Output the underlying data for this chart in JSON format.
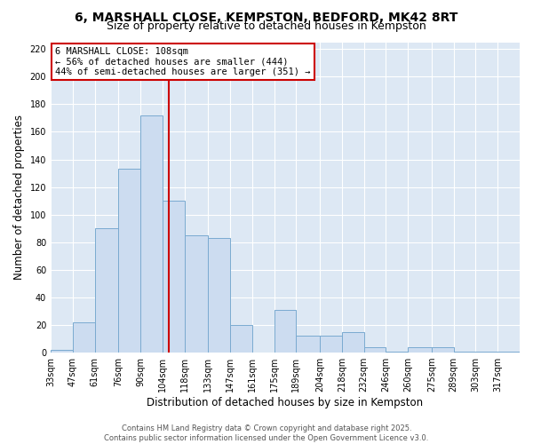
{
  "title": "6, MARSHALL CLOSE, KEMPSTON, BEDFORD, MK42 8RT",
  "subtitle": "Size of property relative to detached houses in Kempston",
  "xlabel": "Distribution of detached houses by size in Kempston",
  "ylabel": "Number of detached properties",
  "bin_labels": [
    "33sqm",
    "47sqm",
    "61sqm",
    "76sqm",
    "90sqm",
    "104sqm",
    "118sqm",
    "133sqm",
    "147sqm",
    "161sqm",
    "175sqm",
    "189sqm",
    "204sqm",
    "218sqm",
    "232sqm",
    "246sqm",
    "260sqm",
    "275sqm",
    "289sqm",
    "303sqm",
    "317sqm"
  ],
  "bin_edges": [
    33,
    47,
    61,
    76,
    90,
    104,
    118,
    133,
    147,
    161,
    175,
    189,
    204,
    218,
    232,
    246,
    260,
    275,
    289,
    303,
    317,
    331
  ],
  "bar_heights": [
    2,
    22,
    90,
    133,
    172,
    110,
    85,
    83,
    20,
    0,
    31,
    12,
    12,
    15,
    4,
    1,
    4,
    4,
    1,
    1,
    1
  ],
  "bar_facecolor": "#ccdcf0",
  "bar_edgecolor": "#7aaad0",
  "background_color": "#dde8f4",
  "grid_color": "#ffffff",
  "fig_facecolor": "#ffffff",
  "vline_x": 108,
  "vline_color": "#cc0000",
  "annotation_title": "6 MARSHALL CLOSE: 108sqm",
  "annotation_line1": "← 56% of detached houses are smaller (444)",
  "annotation_line2": "44% of semi-detached houses are larger (351) →",
  "annotation_box_facecolor": "#ffffff",
  "annotation_box_edgecolor": "#cc0000",
  "ylim": [
    0,
    225
  ],
  "yticks": [
    0,
    20,
    40,
    60,
    80,
    100,
    120,
    140,
    160,
    180,
    200,
    220
  ],
  "footer1": "Contains HM Land Registry data © Crown copyright and database right 2025.",
  "footer2": "Contains public sector information licensed under the Open Government Licence v3.0.",
  "title_fontsize": 10,
  "subtitle_fontsize": 9,
  "xlabel_fontsize": 8.5,
  "ylabel_fontsize": 8.5,
  "tick_fontsize": 7,
  "annotation_fontsize": 7.5,
  "footer_fontsize": 6
}
